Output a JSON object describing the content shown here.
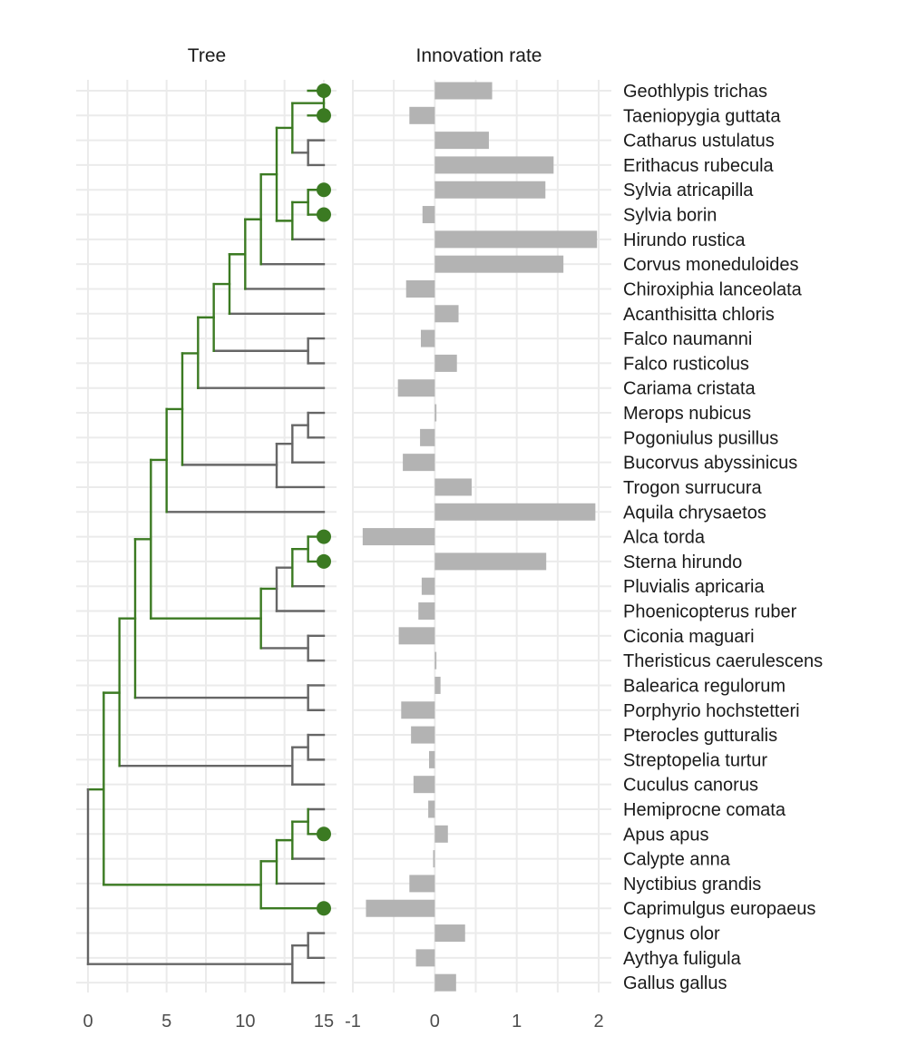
{
  "colors": {
    "background": "#ffffff",
    "grid": "#ebebeb",
    "branch_default": "#666666",
    "branch_highlight": "#3b7a22",
    "tip_point": "#3b7a22",
    "bar": "#b3b3b3"
  },
  "chart_data": [
    {
      "type": "dendrogram",
      "title": "Tree",
      "xlabel": "",
      "ylabel": "",
      "xlim": [
        0,
        15
      ],
      "x_ticks": [
        0,
        5,
        10,
        15
      ],
      "x_tick_labels": [
        "0",
        "5",
        "10",
        "15"
      ],
      "grid": true,
      "highlight_color": "#3b7a22",
      "default_color": "#666666",
      "tips": [
        {
          "label": "Geothlypis trichas",
          "point": true
        },
        {
          "label": "Taeniopygia guttata",
          "point": true
        },
        {
          "label": "Catharus ustulatus",
          "point": false
        },
        {
          "label": "Erithacus rubecula",
          "point": false
        },
        {
          "label": "Sylvia atricapilla",
          "point": true
        },
        {
          "label": "Sylvia borin",
          "point": true
        },
        {
          "label": "Hirundo rustica",
          "point": false
        },
        {
          "label": "Corvus moneduloides",
          "point": false
        },
        {
          "label": "Chiroxiphia lanceolata",
          "point": false
        },
        {
          "label": "Acanthisitta chloris",
          "point": false
        },
        {
          "label": "Falco naumanni",
          "point": false
        },
        {
          "label": "Falco rusticolus",
          "point": false
        },
        {
          "label": "Cariama cristata",
          "point": false
        },
        {
          "label": "Merops nubicus",
          "point": false
        },
        {
          "label": "Pogoniulus pusillus",
          "point": false
        },
        {
          "label": "Bucorvus abyssinicus",
          "point": false
        },
        {
          "label": "Trogon surrucura",
          "point": false
        },
        {
          "label": "Aquila chrysaetos",
          "point": false
        },
        {
          "label": "Alca torda",
          "point": true
        },
        {
          "label": "Sterna hirundo",
          "point": true
        },
        {
          "label": "Pluvialis apricaria",
          "point": false
        },
        {
          "label": "Phoenicopterus ruber",
          "point": false
        },
        {
          "label": "Ciconia maguari",
          "point": false
        },
        {
          "label": "Theristicus caerulescens",
          "point": false
        },
        {
          "label": "Balearica regulorum",
          "point": false
        },
        {
          "label": "Porphyrio hochstetteri",
          "point": false
        },
        {
          "label": "Pterocles gutturalis",
          "point": false
        },
        {
          "label": "Streptopelia turtur",
          "point": false
        },
        {
          "label": "Cuculus canorus",
          "point": false
        },
        {
          "label": "Hemiprocne comata",
          "point": false
        },
        {
          "label": "Apus apus",
          "point": true
        },
        {
          "label": "Calypte anna",
          "point": false
        },
        {
          "label": "Nyctibius grandis",
          "point": false
        },
        {
          "label": "Caprimulgus europaeus",
          "point": true
        },
        {
          "label": "Cygnus olor",
          "point": false
        },
        {
          "label": "Aythya fuligula",
          "point": false
        },
        {
          "label": "Gallus gallus",
          "point": false
        }
      ],
      "nodes": [
        {
          "x": 15,
          "ymin": 0,
          "ymax": 1,
          "hl": true
        },
        {
          "x": 14,
          "ymin": 2,
          "ymax": 3,
          "hl": false
        },
        {
          "x": 13,
          "ymin": 0.5,
          "ymax": 2.5,
          "hl": true
        },
        {
          "x": 14,
          "ymin": 4,
          "ymax": 5,
          "hl": true
        },
        {
          "x": 13,
          "ymin": 4.5,
          "ymax": 6,
          "hl": true
        },
        {
          "x": 12,
          "ymin": 1.5,
          "ymax": 5.25,
          "hl": true
        },
        {
          "x": 11,
          "ymin": 3.375,
          "ymax": 7,
          "hl": true
        },
        {
          "x": 10,
          "ymin": 5.19,
          "ymax": 8,
          "hl": true
        },
        {
          "x": 9,
          "ymin": 6.6,
          "ymax": 9,
          "hl": true
        },
        {
          "x": 14,
          "ymin": 10,
          "ymax": 11,
          "hl": false
        },
        {
          "x": 8,
          "ymin": 7.8,
          "ymax": 10.5,
          "hl": true
        },
        {
          "x": 7,
          "ymin": 9.15,
          "ymax": 12,
          "hl": true
        },
        {
          "x": 14,
          "ymin": 13,
          "ymax": 14,
          "hl": false
        },
        {
          "x": 13,
          "ymin": 13.5,
          "ymax": 15,
          "hl": false
        },
        {
          "x": 12,
          "ymin": 14.25,
          "ymax": 16,
          "hl": false
        },
        {
          "x": 6,
          "ymin": 10.6,
          "ymax": 15.1,
          "hl": true
        },
        {
          "x": 5,
          "ymin": 12.85,
          "ymax": 17,
          "hl": true
        },
        {
          "x": 14,
          "ymin": 18,
          "ymax": 19,
          "hl": true
        },
        {
          "x": 13,
          "ymin": 18.5,
          "ymax": 20,
          "hl": true
        },
        {
          "x": 12,
          "ymin": 19.25,
          "ymax": 21,
          "hl": false
        },
        {
          "x": 14,
          "ymin": 22,
          "ymax": 23,
          "hl": false
        },
        {
          "x": 11,
          "ymin": 20.1,
          "ymax": 22.5,
          "hl": true
        },
        {
          "x": 4,
          "ymin": 14.9,
          "ymax": 21.3,
          "hl": true
        },
        {
          "x": 14,
          "ymin": 24,
          "ymax": 25,
          "hl": false
        },
        {
          "x": 3,
          "ymin": 18.1,
          "ymax": 24.5,
          "hl": true
        },
        {
          "x": 14,
          "ymin": 26,
          "ymax": 27,
          "hl": false
        },
        {
          "x": 13,
          "ymin": 26.5,
          "ymax": 28,
          "hl": false
        },
        {
          "x": 2,
          "ymin": 21.3,
          "ymax": 27.25,
          "hl": true
        },
        {
          "x": 14,
          "ymin": 29,
          "ymax": 30,
          "hl": true
        },
        {
          "x": 13,
          "ymin": 29.5,
          "ymax": 31,
          "hl": true
        },
        {
          "x": 12,
          "ymin": 30.25,
          "ymax": 32,
          "hl": true
        },
        {
          "x": 11,
          "ymin": 31.1,
          "ymax": 33,
          "hl": true
        },
        {
          "x": 1,
          "ymin": 24.3,
          "ymax": 32.05,
          "hl": true
        },
        {
          "x": 14,
          "ymin": 34,
          "ymax": 35,
          "hl": false
        },
        {
          "x": 13,
          "ymin": 34.5,
          "ymax": 36,
          "hl": false
        },
        {
          "x": 0,
          "ymin": 28.2,
          "ymax": 35.25,
          "hl": false
        }
      ],
      "branches": [
        {
          "x0": 14,
          "x1": 15,
          "y": 2,
          "hl": false
        },
        {
          "x0": 14,
          "x1": 15,
          "y": 3,
          "hl": false
        },
        {
          "x0": 13,
          "x1": 14,
          "y": 2.5,
          "hl": false
        },
        {
          "x0": 14,
          "x1": 15,
          "y": 0,
          "hl": true
        },
        {
          "x0": 14,
          "x1": 15,
          "y": 1,
          "hl": true
        },
        {
          "x0": 13,
          "x1": 15,
          "y": 0.5,
          "hl": true
        },
        {
          "x0": 12,
          "x1": 13,
          "y": 1.5,
          "hl": true
        },
        {
          "x0": 14,
          "x1": 15,
          "y": 4,
          "hl": true
        },
        {
          "x0": 14,
          "x1": 15,
          "y": 5,
          "hl": true
        },
        {
          "x0": 13,
          "x1": 14,
          "y": 4.5,
          "hl": true
        },
        {
          "x0": 13,
          "x1": 15,
          "y": 6,
          "hl": false
        },
        {
          "x0": 12,
          "x1": 13,
          "y": 5.25,
          "hl": true
        },
        {
          "x0": 11,
          "x1": 12,
          "y": 3.375,
          "hl": true
        },
        {
          "x0": 11,
          "x1": 15,
          "y": 7,
          "hl": false
        },
        {
          "x0": 10,
          "x1": 11,
          "y": 5.19,
          "hl": true
        },
        {
          "x0": 10,
          "x1": 15,
          "y": 8,
          "hl": false
        },
        {
          "x0": 9,
          "x1": 10,
          "y": 6.6,
          "hl": true
        },
        {
          "x0": 9,
          "x1": 15,
          "y": 9,
          "hl": false
        },
        {
          "x0": 8,
          "x1": 9,
          "y": 7.8,
          "hl": true
        },
        {
          "x0": 14,
          "x1": 15,
          "y": 10,
          "hl": false
        },
        {
          "x0": 14,
          "x1": 15,
          "y": 11,
          "hl": false
        },
        {
          "x0": 8,
          "x1": 14,
          "y": 10.5,
          "hl": false
        },
        {
          "x0": 7,
          "x1": 8,
          "y": 9.15,
          "hl": true
        },
        {
          "x0": 7,
          "x1": 15,
          "y": 12,
          "hl": false
        },
        {
          "x0": 6,
          "x1": 7,
          "y": 10.6,
          "hl": true
        },
        {
          "x0": 14,
          "x1": 15,
          "y": 13,
          "hl": false
        },
        {
          "x0": 14,
          "x1": 15,
          "y": 14,
          "hl": false
        },
        {
          "x0": 13,
          "x1": 14,
          "y": 13.5,
          "hl": false
        },
        {
          "x0": 13,
          "x1": 15,
          "y": 15,
          "hl": false
        },
        {
          "x0": 12,
          "x1": 13,
          "y": 14.25,
          "hl": false
        },
        {
          "x0": 12,
          "x1": 15,
          "y": 16,
          "hl": false
        },
        {
          "x0": 6,
          "x1": 12,
          "y": 15.1,
          "hl": false
        },
        {
          "x0": 5,
          "x1": 6,
          "y": 12.85,
          "hl": true
        },
        {
          "x0": 5,
          "x1": 15,
          "y": 17,
          "hl": false
        },
        {
          "x0": 4,
          "x1": 5,
          "y": 14.9,
          "hl": true
        },
        {
          "x0": 14,
          "x1": 15,
          "y": 18,
          "hl": true
        },
        {
          "x0": 14,
          "x1": 15,
          "y": 19,
          "hl": true
        },
        {
          "x0": 13,
          "x1": 14,
          "y": 18.5,
          "hl": true
        },
        {
          "x0": 13,
          "x1": 15,
          "y": 20,
          "hl": false
        },
        {
          "x0": 12,
          "x1": 13,
          "y": 19.25,
          "hl": false
        },
        {
          "x0": 12,
          "x1": 15,
          "y": 21,
          "hl": false
        },
        {
          "x0": 11,
          "x1": 12,
          "y": 20.1,
          "hl": true
        },
        {
          "x0": 14,
          "x1": 15,
          "y": 22,
          "hl": false
        },
        {
          "x0": 14,
          "x1": 15,
          "y": 23,
          "hl": false
        },
        {
          "x0": 11,
          "x1": 14,
          "y": 22.5,
          "hl": false
        },
        {
          "x0": 4,
          "x1": 11,
          "y": 21.3,
          "hl": true
        },
        {
          "x0": 3,
          "x1": 4,
          "y": 18.1,
          "hl": true
        },
        {
          "x0": 14,
          "x1": 15,
          "y": 24,
          "hl": false
        },
        {
          "x0": 14,
          "x1": 15,
          "y": 25,
          "hl": false
        },
        {
          "x0": 3,
          "x1": 14,
          "y": 24.5,
          "hl": false
        },
        {
          "x0": 2,
          "x1": 3,
          "y": 21.3,
          "hl": true
        },
        {
          "x0": 14,
          "x1": 15,
          "y": 26,
          "hl": false
        },
        {
          "x0": 14,
          "x1": 15,
          "y": 27,
          "hl": false
        },
        {
          "x0": 13,
          "x1": 14,
          "y": 26.5,
          "hl": false
        },
        {
          "x0": 13,
          "x1": 15,
          "y": 28,
          "hl": false
        },
        {
          "x0": 2,
          "x1": 13,
          "y": 27.25,
          "hl": false
        },
        {
          "x0": 1,
          "x1": 2,
          "y": 24.3,
          "hl": true
        },
        {
          "x0": 14,
          "x1": 15,
          "y": 29,
          "hl": false
        },
        {
          "x0": 14,
          "x1": 15,
          "y": 30,
          "hl": true
        },
        {
          "x0": 13,
          "x1": 14,
          "y": 29.5,
          "hl": true
        },
        {
          "x0": 13,
          "x1": 15,
          "y": 31,
          "hl": false
        },
        {
          "x0": 12,
          "x1": 13,
          "y": 30.25,
          "hl": true
        },
        {
          "x0": 12,
          "x1": 15,
          "y": 32,
          "hl": false
        },
        {
          "x0": 11,
          "x1": 12,
          "y": 31.1,
          "hl": true
        },
        {
          "x0": 11,
          "x1": 15,
          "y": 33,
          "hl": true
        },
        {
          "x0": 1,
          "x1": 11,
          "y": 32.05,
          "hl": true
        },
        {
          "x0": 0,
          "x1": 1,
          "y": 28.2,
          "hl": true
        },
        {
          "x0": 14,
          "x1": 15,
          "y": 34,
          "hl": false
        },
        {
          "x0": 14,
          "x1": 15,
          "y": 35,
          "hl": false
        },
        {
          "x0": 13,
          "x1": 14,
          "y": 34.5,
          "hl": false
        },
        {
          "x0": 13,
          "x1": 15,
          "y": 36,
          "hl": false
        },
        {
          "x0": 0,
          "x1": 13,
          "y": 35.25,
          "hl": false
        }
      ]
    },
    {
      "type": "bar",
      "orientation": "horizontal",
      "title": "Innovation rate",
      "xlabel": "",
      "ylabel": "",
      "xlim": [
        -1,
        2
      ],
      "x_ticks": [
        -1,
        0,
        1,
        2
      ],
      "x_tick_labels": [
        "-1",
        "0",
        "1",
        "2"
      ],
      "grid": true,
      "bar_color": "#b3b3b3",
      "categories": [
        "Geothlypis trichas",
        "Taeniopygia guttata",
        "Catharus ustulatus",
        "Erithacus rubecula",
        "Sylvia atricapilla",
        "Sylvia borin",
        "Hirundo rustica",
        "Corvus moneduloides",
        "Chiroxiphia lanceolata",
        "Acanthisitta chloris",
        "Falco naumanni",
        "Falco rusticolus",
        "Cariama cristata",
        "Merops nubicus",
        "Pogoniulus pusillus",
        "Bucorvus abyssinicus",
        "Trogon surrucura",
        "Aquila chrysaetos",
        "Alca torda",
        "Sterna hirundo",
        "Pluvialis apricaria",
        "Phoenicopterus ruber",
        "Ciconia maguari",
        "Theristicus caerulescens",
        "Balearica regulorum",
        "Porphyrio hochstetteri",
        "Pterocles gutturalis",
        "Streptopelia turtur",
        "Cuculus canorus",
        "Hemiprocne comata",
        "Apus apus",
        "Calypte anna",
        "Nyctibius grandis",
        "Caprimulgus europaeus",
        "Cygnus olor",
        "Aythya fuligula",
        "Gallus gallus"
      ],
      "values": [
        0.7,
        -0.31,
        0.66,
        1.45,
        1.35,
        -0.15,
        1.98,
        1.57,
        -0.35,
        0.29,
        -0.17,
        0.27,
        -0.45,
        0.02,
        -0.18,
        -0.39,
        0.45,
        1.96,
        -0.88,
        1.36,
        -0.16,
        -0.2,
        -0.44,
        0.02,
        0.07,
        -0.41,
        -0.29,
        -0.07,
        -0.26,
        -0.08,
        0.16,
        -0.02,
        -0.31,
        -0.84,
        0.37,
        -0.23,
        0.26
      ]
    }
  ]
}
